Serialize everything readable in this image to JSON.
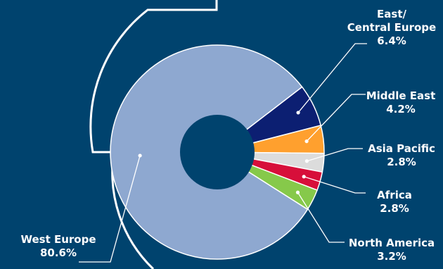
{
  "chart_data": {
    "type": "pie",
    "donut": true,
    "categories": [
      "West Europe",
      "East/\nCentral Europe",
      "Middle East",
      "Asia Pacific",
      "Africa",
      "North America"
    ],
    "values": [
      80.6,
      6.4,
      4.2,
      2.8,
      2.8,
      3.2
    ],
    "value_labels": [
      "80.6%",
      "6.4%",
      "4.2%",
      "2.8%",
      "2.8%",
      "3.2%"
    ],
    "label_lines": [
      [
        "West Europe"
      ],
      [
        "East/",
        "Central Europe"
      ],
      [
        "Middle East"
      ],
      [
        "Asia Pacific"
      ],
      [
        "Africa"
      ],
      [
        "North America"
      ]
    ],
    "colors": [
      "#8ea8d0",
      "#0c1f72",
      "#ffa02e",
      "#dcdcdc",
      "#d70f3a",
      "#86c94a"
    ],
    "background": "#00436e",
    "legend": "none"
  }
}
